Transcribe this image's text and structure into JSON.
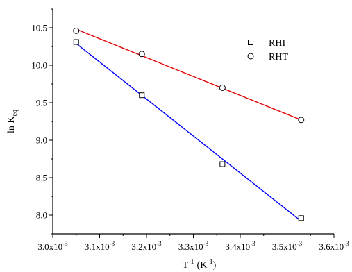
{
  "chart_data": {
    "type": "scatter",
    "xlabel_base": "T",
    "xlabel_sup": "-1",
    "xlabel_unit_open": "(K",
    "xlabel_unit_sup": "-1",
    "xlabel_unit_close": ")",
    "ylabel_base": "ln K",
    "ylabel_sub": "eq",
    "xlim": [
      0.003,
      0.0036
    ],
    "ylim": [
      7.75,
      10.75
    ],
    "x_ticks": [
      {
        "value": 0.003,
        "mant": "3.0x10",
        "exp": "-3"
      },
      {
        "value": 0.0031,
        "mant": "3.1x10",
        "exp": "-3"
      },
      {
        "value": 0.0032,
        "mant": "3.2x10",
        "exp": "-3"
      },
      {
        "value": 0.0033,
        "mant": "3.3x10",
        "exp": "-3"
      },
      {
        "value": 0.0034,
        "mant": "3.4x10",
        "exp": "-3"
      },
      {
        "value": 0.0035,
        "mant": "3.5x10",
        "exp": "-3"
      },
      {
        "value": 0.0036,
        "mant": "3.6x10",
        "exp": "-3"
      }
    ],
    "y_ticks": [
      {
        "value": 8.0,
        "label": "8.0"
      },
      {
        "value": 8.5,
        "label": "8.5"
      },
      {
        "value": 9.0,
        "label": "9.0"
      },
      {
        "value": 9.5,
        "label": "9.5"
      },
      {
        "value": 10.0,
        "label": "10.0"
      },
      {
        "value": 10.5,
        "label": "10.5"
      }
    ],
    "series": [
      {
        "name": "RHI",
        "marker": "square",
        "line_color": "#0000ff",
        "points": [
          {
            "x": 0.00305,
            "y": 10.31
          },
          {
            "x": 0.00319,
            "y": 9.6
          },
          {
            "x": 0.003362,
            "y": 8.68
          },
          {
            "x": 0.00353,
            "y": 7.96
          }
        ],
        "fit": [
          [
            0.00305,
            10.29
          ],
          [
            0.00353,
            7.92
          ]
        ]
      },
      {
        "name": "RHT",
        "marker": "circle",
        "line_color": "#e00000",
        "points": [
          {
            "x": 0.00305,
            "y": 10.46
          },
          {
            "x": 0.00319,
            "y": 10.15
          },
          {
            "x": 0.003362,
            "y": 9.7
          },
          {
            "x": 0.00353,
            "y": 9.27
          }
        ],
        "fit": [
          [
            0.00305,
            10.48
          ],
          [
            0.00353,
            9.27
          ]
        ]
      }
    ],
    "grid": false,
    "legend_position": "top-right"
  }
}
